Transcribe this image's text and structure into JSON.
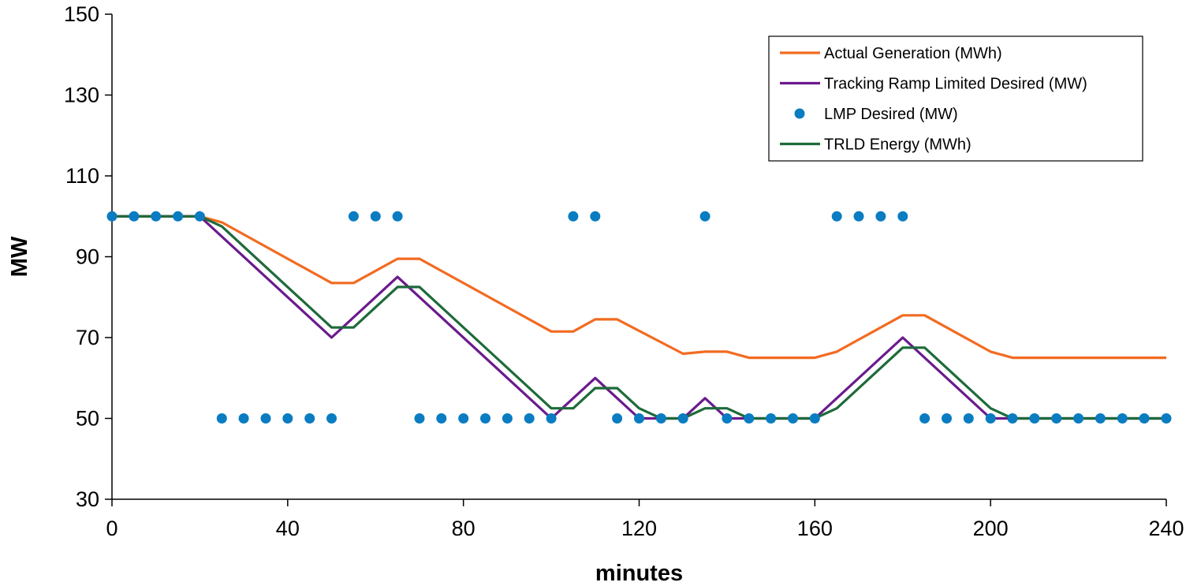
{
  "chart_data": {
    "type": "line",
    "title": "",
    "xlabel": "minutes",
    "ylabel": "MW",
    "xlim": [
      0,
      240
    ],
    "ylim": [
      30,
      150
    ],
    "xticks": [
      0,
      40,
      80,
      120,
      160,
      200,
      240
    ],
    "yticks": [
      30,
      50,
      70,
      90,
      110,
      130,
      150
    ],
    "grid": false,
    "legend_position": "top-right",
    "series": [
      {
        "name": "Actual Generation (MWh)",
        "kind": "line",
        "color": "#F26B21",
        "points": [
          [
            0,
            100
          ],
          [
            20,
            100
          ],
          [
            25,
            98.5
          ],
          [
            50,
            83.5
          ],
          [
            55,
            83.5
          ],
          [
            65,
            89.5
          ],
          [
            70,
            89.5
          ],
          [
            100,
            71.5
          ],
          [
            105,
            71.5
          ],
          [
            110,
            74.5
          ],
          [
            115,
            74.5
          ],
          [
            130,
            66
          ],
          [
            135,
            66.5
          ],
          [
            140,
            66.5
          ],
          [
            145,
            65
          ],
          [
            160,
            65
          ],
          [
            165,
            66.5
          ],
          [
            180,
            75.5
          ],
          [
            185,
            75.5
          ],
          [
            200,
            66.5
          ],
          [
            205,
            65
          ],
          [
            240,
            65
          ]
        ]
      },
      {
        "name": "Tracking Ramp Limited Desired (MW)",
        "kind": "line",
        "color": "#6A1B8C",
        "points": [
          [
            0,
            100
          ],
          [
            20,
            100
          ],
          [
            50,
            70
          ],
          [
            65,
            85
          ],
          [
            100,
            50
          ],
          [
            110,
            60
          ],
          [
            120,
            50
          ],
          [
            130,
            50
          ],
          [
            135,
            55
          ],
          [
            140,
            50
          ],
          [
            160,
            50
          ],
          [
            180,
            70
          ],
          [
            200,
            50
          ],
          [
            240,
            50
          ]
        ]
      },
      {
        "name": "LMP Desired (MW)",
        "kind": "scatter",
        "color": "#0A7CC1",
        "points": [
          [
            0,
            100
          ],
          [
            5,
            100
          ],
          [
            10,
            100
          ],
          [
            15,
            100
          ],
          [
            20,
            100
          ],
          [
            25,
            50
          ],
          [
            30,
            50
          ],
          [
            35,
            50
          ],
          [
            40,
            50
          ],
          [
            45,
            50
          ],
          [
            50,
            50
          ],
          [
            55,
            100
          ],
          [
            60,
            100
          ],
          [
            65,
            100
          ],
          [
            70,
            50
          ],
          [
            75,
            50
          ],
          [
            80,
            50
          ],
          [
            85,
            50
          ],
          [
            90,
            50
          ],
          [
            95,
            50
          ],
          [
            100,
            50
          ],
          [
            105,
            100
          ],
          [
            110,
            100
          ],
          [
            115,
            50
          ],
          [
            120,
            50
          ],
          [
            125,
            50
          ],
          [
            130,
            50
          ],
          [
            135,
            100
          ],
          [
            140,
            50
          ],
          [
            145,
            50
          ],
          [
            150,
            50
          ],
          [
            155,
            50
          ],
          [
            160,
            50
          ],
          [
            165,
            100
          ],
          [
            170,
            100
          ],
          [
            175,
            100
          ],
          [
            180,
            100
          ],
          [
            185,
            50
          ],
          [
            190,
            50
          ],
          [
            195,
            50
          ],
          [
            200,
            50
          ],
          [
            205,
            50
          ],
          [
            210,
            50
          ],
          [
            215,
            50
          ],
          [
            220,
            50
          ],
          [
            225,
            50
          ],
          [
            230,
            50
          ],
          [
            235,
            50
          ],
          [
            240,
            50
          ]
        ]
      },
      {
        "name": "TRLD Energy (MWh)",
        "kind": "line",
        "color": "#1E6B3A",
        "points": [
          [
            0,
            100
          ],
          [
            20,
            100
          ],
          [
            25,
            97.5
          ],
          [
            50,
            72.5
          ],
          [
            55,
            72.5
          ],
          [
            65,
            82.5
          ],
          [
            70,
            82.5
          ],
          [
            100,
            52.5
          ],
          [
            105,
            52.5
          ],
          [
            110,
            57.5
          ],
          [
            115,
            57.5
          ],
          [
            120,
            52.5
          ],
          [
            125,
            50
          ],
          [
            130,
            50
          ],
          [
            135,
            52.5
          ],
          [
            140,
            52.5
          ],
          [
            145,
            50
          ],
          [
            160,
            50
          ],
          [
            165,
            52.5
          ],
          [
            180,
            67.5
          ],
          [
            185,
            67.5
          ],
          [
            200,
            52.5
          ],
          [
            205,
            50
          ],
          [
            240,
            50
          ]
        ]
      }
    ]
  }
}
